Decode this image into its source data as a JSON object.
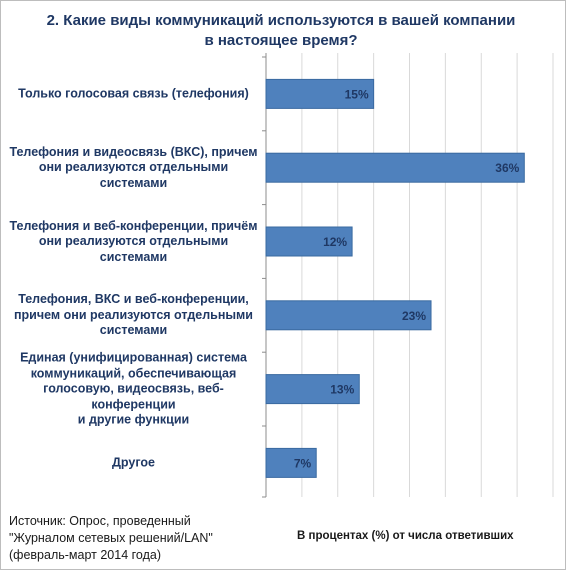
{
  "chart_data": {
    "type": "bar",
    "orientation": "horizontal",
    "title": "2. Какие виды коммуникаций используются в вашей компании в настоящее время?",
    "categories": [
      "Только голосовая связь (телефония)",
      "Телефония и видеосвязь (ВКС), причем они реализуются отдельными системами",
      "Телефония и веб-конференции, причём они реализуются отдельными системами",
      "Телефония, ВКС и веб-конференции, причем они реализуются отдельными системами",
      "Единая (унифицированная) система коммуникаций, обеспечивающая голосовую, видеосвязь, веб-конференции и другие функции",
      "Другое"
    ],
    "category_lines": [
      [
        "Только голосовая связь (телефония)"
      ],
      [
        "Телефония и видеосвязь (ВКС), причем",
        "они реализуются отдельными системами"
      ],
      [
        "Телефония и веб-конференции, причём",
        "они реализуются отдельными системами"
      ],
      [
        "Телефония, ВКС и веб-конференции,",
        "причем они реализуются отдельными",
        "системами"
      ],
      [
        "Единая (унифицированная) система",
        "коммуникаций, обеспечивающая",
        "голосовую, видеосвязь, веб-конференции",
        "и другие функции"
      ],
      [
        "Другое"
      ]
    ],
    "values": [
      15,
      36,
      12,
      23,
      13,
      7
    ],
    "value_labels": [
      "15%",
      "36%",
      "12%",
      "23%",
      "13%",
      "7%"
    ],
    "xlabel": "В процентах (%) от числа ответивших",
    "xlim": [
      0,
      40
    ],
    "grid": true,
    "colors": {
      "bar": "#4f81bd",
      "bar_border": "#3a6aa0",
      "grid": "#d9d9d9",
      "axis": "#8c8c8c",
      "text": "#1f3864"
    }
  },
  "source": {
    "lines": [
      "Источник: Опрос, проведенный",
      "\"Журналом сетевых решений/LAN\"",
      "(февраль-март 2014 года)"
    ]
  }
}
